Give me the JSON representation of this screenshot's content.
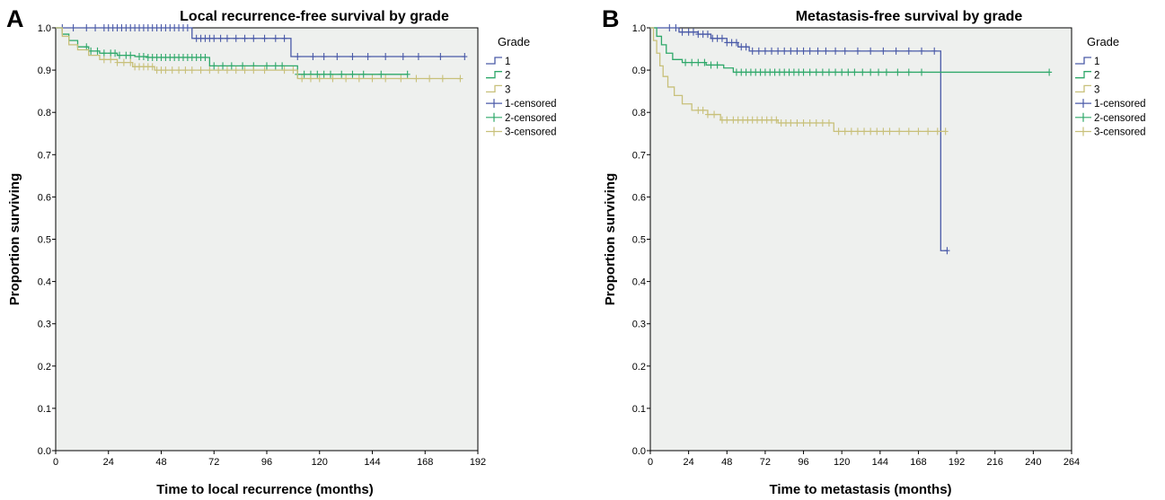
{
  "chart_data": [
    {
      "type": "line",
      "subtype": "kaplan-meier",
      "panel": "A",
      "title": "Local recurrence-free survival by grade",
      "xlabel": "Time to local recurrence (months)",
      "ylabel": "Proportion surviving",
      "xlim": [
        0,
        192
      ],
      "ylim": [
        0,
        1
      ],
      "xticks": [
        0,
        24,
        48,
        72,
        96,
        120,
        144,
        168,
        192
      ],
      "yticks": [
        "0.0",
        "0.1",
        "0.2",
        "0.3",
        "0.4",
        "0.5",
        "0.6",
        "0.7",
        "0.8",
        "0.9",
        "1.0"
      ],
      "grid": false,
      "background": "#eef0ee",
      "legend": {
        "title": "Grade",
        "position": "right",
        "entries": [
          "1",
          "2",
          "3",
          "1-censored",
          "2-censored",
          "3-censored"
        ]
      },
      "series": [
        {
          "name": "1",
          "color": "#4a5aa8",
          "steps": [
            [
              0,
              1.0
            ],
            [
              62,
              0.975
            ],
            [
              107,
              0.932
            ],
            [
              186,
              0.932
            ]
          ],
          "censored": [
            3,
            8,
            14,
            18,
            22,
            24,
            26,
            28,
            30,
            32,
            34,
            36,
            38,
            40,
            42,
            44,
            46,
            48,
            50,
            52,
            54,
            56,
            58,
            60,
            64,
            66,
            68,
            70,
            72,
            75,
            78,
            82,
            86,
            90,
            95,
            100,
            104,
            110,
            117,
            122,
            128,
            135,
            142,
            150,
            158,
            165,
            175,
            186
          ]
        },
        {
          "name": "2",
          "color": "#2fa86a",
          "steps": [
            [
              0,
              1.0
            ],
            [
              3,
              0.985
            ],
            [
              6,
              0.97
            ],
            [
              10,
              0.955
            ],
            [
              15,
              0.945
            ],
            [
              20,
              0.94
            ],
            [
              28,
              0.935
            ],
            [
              36,
              0.932
            ],
            [
              42,
              0.93
            ],
            [
              70,
              0.91
            ],
            [
              110,
              0.89
            ],
            [
              160,
              0.89
            ]
          ],
          "censored": [
            14,
            16,
            19,
            22,
            25,
            27,
            29,
            32,
            34,
            38,
            40,
            42,
            44,
            46,
            48,
            50,
            52,
            54,
            56,
            58,
            60,
            62,
            64,
            66,
            68,
            72,
            76,
            80,
            85,
            90,
            96,
            100,
            103,
            110,
            113,
            116,
            119,
            122,
            125,
            130,
            135,
            140,
            148,
            160
          ]
        },
        {
          "name": "3",
          "color": "#c8c07a",
          "steps": [
            [
              0,
              1.0
            ],
            [
              3,
              0.98
            ],
            [
              6,
              0.96
            ],
            [
              10,
              0.948
            ],
            [
              15,
              0.935
            ],
            [
              20,
              0.925
            ],
            [
              28,
              0.918
            ],
            [
              35,
              0.908
            ],
            [
              45,
              0.9
            ],
            [
              60,
              0.9
            ],
            [
              100,
              0.9
            ],
            [
              110,
              0.88
            ],
            [
              184,
              0.88
            ]
          ],
          "censored": [
            22,
            25,
            28,
            31,
            34,
            36,
            38,
            40,
            42,
            44,
            46,
            48,
            50,
            53,
            56,
            59,
            62,
            66,
            70,
            74,
            78,
            82,
            86,
            90,
            95,
            104,
            108,
            112,
            116,
            120,
            126,
            132,
            138,
            144,
            150,
            157,
            164,
            170,
            176,
            184
          ]
        }
      ]
    },
    {
      "type": "line",
      "subtype": "kaplan-meier",
      "panel": "B",
      "title": "Metastasis-free survival by grade",
      "xlabel": "Time to metastasis (months)",
      "ylabel": "Proportion surviving",
      "xlim": [
        0,
        264
      ],
      "ylim": [
        0,
        1
      ],
      "xticks": [
        0,
        24,
        48,
        72,
        96,
        120,
        144,
        168,
        192,
        216,
        240,
        264
      ],
      "yticks": [
        "0.0",
        "0.1",
        "0.2",
        "0.3",
        "0.4",
        "0.5",
        "0.6",
        "0.7",
        "0.8",
        "0.9",
        "1.0"
      ],
      "grid": false,
      "background": "#eef0ee",
      "legend": {
        "title": "Grade",
        "position": "right",
        "entries": [
          "1",
          "2",
          "3",
          "1-censored",
          "2-censored",
          "3-censored"
        ]
      },
      "series": [
        {
          "name": "1",
          "color": "#4a5aa8",
          "steps": [
            [
              0,
              1.0
            ],
            [
              18,
              0.99
            ],
            [
              30,
              0.985
            ],
            [
              38,
              0.975
            ],
            [
              48,
              0.965
            ],
            [
              55,
              0.955
            ],
            [
              62,
              0.945
            ],
            [
              182,
              0.945
            ],
            [
              182,
              0.473
            ],
            [
              186,
              0.473
            ]
          ],
          "censored": [
            12,
            16,
            20,
            24,
            27,
            30,
            33,
            36,
            39,
            42,
            45,
            48,
            51,
            54,
            57,
            60,
            64,
            68,
            72,
            76,
            80,
            84,
            88,
            92,
            96,
            100,
            105,
            110,
            116,
            122,
            130,
            138,
            146,
            154,
            162,
            170,
            178,
            186
          ]
        },
        {
          "name": "2",
          "color": "#2fa86a",
          "steps": [
            [
              0,
              1.0
            ],
            [
              4,
              0.98
            ],
            [
              7,
              0.96
            ],
            [
              10,
              0.94
            ],
            [
              14,
              0.925
            ],
            [
              20,
              0.918
            ],
            [
              35,
              0.912
            ],
            [
              46,
              0.905
            ],
            [
              52,
              0.895
            ],
            [
              250,
              0.895
            ]
          ],
          "censored": [
            22,
            26,
            30,
            34,
            38,
            42,
            54,
            57,
            60,
            63,
            66,
            69,
            72,
            75,
            78,
            81,
            84,
            87,
            90,
            93,
            96,
            100,
            104,
            108,
            112,
            116,
            120,
            124,
            128,
            133,
            138,
            143,
            148,
            155,
            162,
            170,
            250
          ]
        },
        {
          "name": "3",
          "color": "#c8c07a",
          "steps": [
            [
              0,
              1.0
            ],
            [
              2,
              0.97
            ],
            [
              4,
              0.94
            ],
            [
              6,
              0.91
            ],
            [
              8,
              0.885
            ],
            [
              11,
              0.86
            ],
            [
              15,
              0.84
            ],
            [
              20,
              0.82
            ],
            [
              26,
              0.805
            ],
            [
              36,
              0.795
            ],
            [
              44,
              0.782
            ],
            [
              60,
              0.782
            ],
            [
              80,
              0.775
            ],
            [
              115,
              0.755
            ],
            [
              185,
              0.755
            ]
          ],
          "censored": [
            30,
            33,
            36,
            40,
            45,
            48,
            52,
            55,
            58,
            61,
            64,
            67,
            70,
            73,
            76,
            79,
            82,
            85,
            88,
            92,
            96,
            100,
            104,
            108,
            112,
            118,
            122,
            126,
            130,
            134,
            138,
            142,
            146,
            150,
            156,
            162,
            168,
            174,
            180,
            185
          ]
        }
      ]
    }
  ]
}
